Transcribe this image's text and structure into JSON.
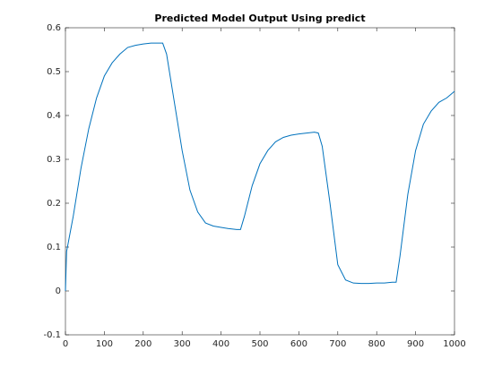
{
  "chart_data": {
    "type": "line",
    "title": "Predicted Model Output Using predict",
    "x": [
      0,
      3,
      20,
      40,
      60,
      80,
      100,
      120,
      140,
      160,
      180,
      200,
      220,
      240,
      250,
      260,
      280,
      300,
      320,
      340,
      360,
      380,
      400,
      420,
      440,
      450,
      460,
      480,
      500,
      520,
      540,
      560,
      580,
      600,
      620,
      640,
      650,
      660,
      680,
      700,
      720,
      740,
      760,
      780,
      800,
      820,
      840,
      850,
      860,
      880,
      900,
      920,
      940,
      960,
      980,
      1000
    ],
    "series": [
      {
        "color": "#0072bd",
        "values": [
          0,
          0.09,
          0.17,
          0.28,
          0.37,
          0.44,
          0.49,
          0.52,
          0.54,
          0.555,
          0.56,
          0.563,
          0.565,
          0.565,
          0.565,
          0.54,
          0.43,
          0.32,
          0.23,
          0.18,
          0.155,
          0.148,
          0.145,
          0.142,
          0.14,
          0.14,
          0.17,
          0.24,
          0.29,
          0.32,
          0.34,
          0.35,
          0.355,
          0.358,
          0.36,
          0.362,
          0.36,
          0.33,
          0.2,
          0.06,
          0.025,
          0.018,
          0.017,
          0.017,
          0.018,
          0.018,
          0.02,
          0.02,
          0.08,
          0.22,
          0.32,
          0.38,
          0.41,
          0.43,
          0.44,
          0.455
        ]
      }
    ],
    "xlim": [
      0,
      1000
    ],
    "xticks": [
      0,
      100,
      200,
      300,
      400,
      500,
      600,
      700,
      800,
      900,
      1000
    ],
    "ylim": [
      -0.1,
      0.6
    ],
    "yticks": [
      -0.1,
      0,
      0.1,
      0.2,
      0.3,
      0.4,
      0.5,
      0.6
    ]
  }
}
